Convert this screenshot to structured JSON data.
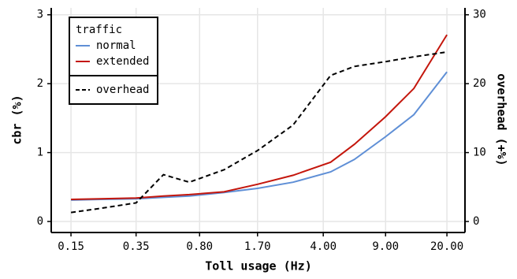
{
  "chart_data": {
    "type": "line",
    "xlabel": "Toll usage (Hz)",
    "ylabel": "cbr (%)",
    "y2label": "overhead (+%)",
    "x": [
      0.15,
      0.22,
      0.35,
      0.5,
      0.7,
      1.1,
      1.7,
      2.7,
      4.4,
      6,
      9,
      13,
      20
    ],
    "xscale": "log",
    "xlim": [
      0.116,
      25.3
    ],
    "xticks": [
      0.15,
      0.35,
      {
        "value": 0.8,
        "label": "0.80"
      },
      {
        "value": 1.7,
        "label": "1.70"
      },
      {
        "value": 4,
        "label": "4.00"
      },
      {
        "value": 9,
        "label": "9.00"
      },
      {
        "value": 20,
        "label": "20.00"
      }
    ],
    "ylim": [
      -0.16,
      3.1
    ],
    "yticks": [
      0,
      1,
      2,
      3
    ],
    "y2lim": [
      -1.6,
      31
    ],
    "y2ticks": [
      0,
      10,
      20,
      30
    ],
    "grid": true,
    "legend_title": "traffic",
    "legend": "top-left",
    "series": [
      {
        "name": "normal",
        "color": "#5f8fd6",
        "dash": false,
        "values": [
          0.31,
          0.32,
          0.33,
          0.35,
          0.37,
          0.42,
          0.48,
          0.57,
          0.72,
          0.9,
          1.23,
          1.55,
          2.17
        ]
      },
      {
        "name": "extended",
        "color": "#c4160c",
        "dash": false,
        "values": [
          0.32,
          0.33,
          0.34,
          0.37,
          0.39,
          0.43,
          0.54,
          0.67,
          0.86,
          1.12,
          1.52,
          1.93,
          2.71
        ]
      },
      {
        "name": "overhead",
        "color": "#000000",
        "dash": true,
        "axis": "y2",
        "values": [
          1.3,
          1.9,
          2.7,
          6.8,
          5.7,
          7.5,
          10.3,
          14.0,
          21.2,
          22.5,
          23.2,
          23.9,
          24.6
        ]
      }
    ]
  }
}
